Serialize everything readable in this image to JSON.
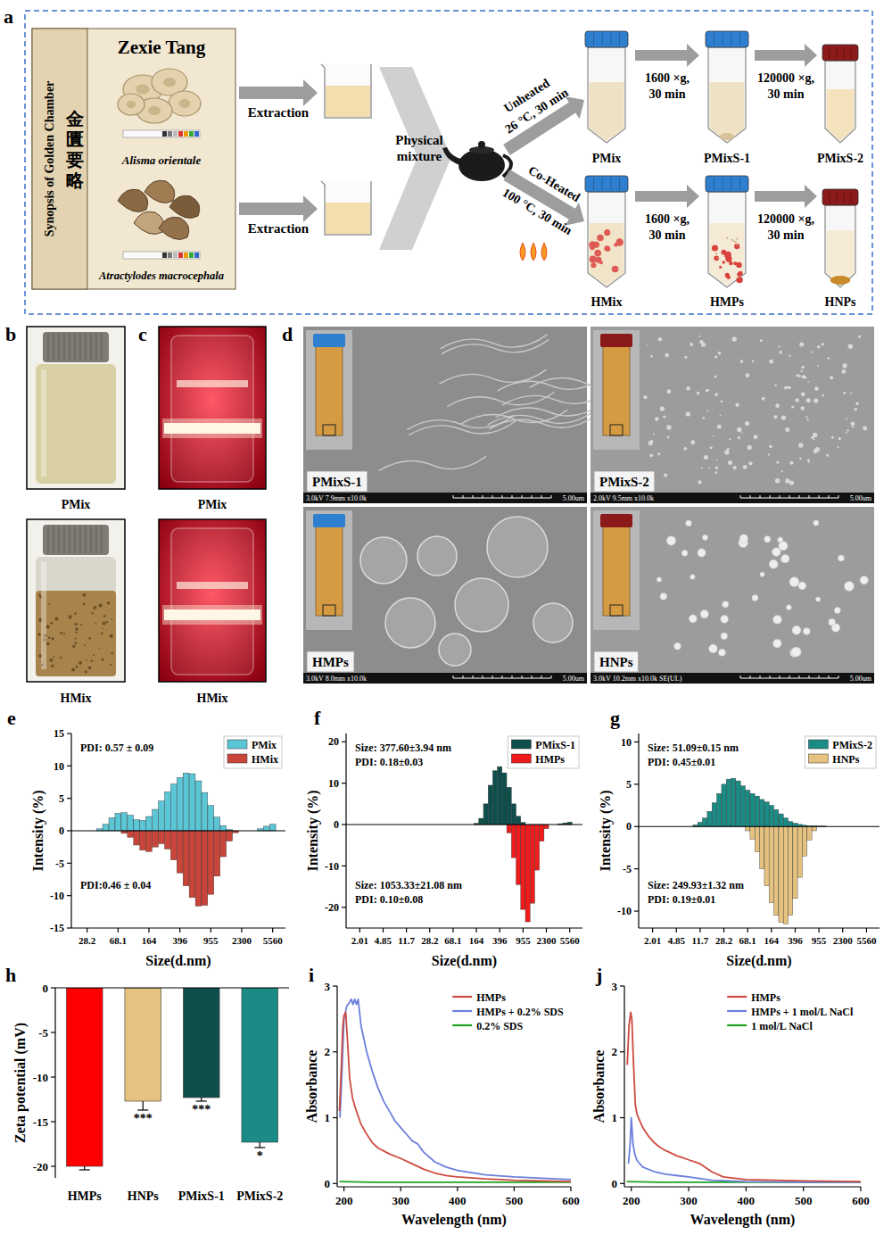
{
  "panel_labels": [
    "a",
    "b",
    "c",
    "d",
    "e",
    "f",
    "g",
    "h",
    "i",
    "j"
  ],
  "diagram": {
    "book": {
      "title_en": "Synopsis of Golden Chamber",
      "title_zh": "金匱要略",
      "formula": "Zexie Tang",
      "herbs": [
        "Alisma orientale",
        "Atractylodes macrocephala"
      ]
    },
    "steps": {
      "extraction": "Extraction",
      "mixing": "Physical mixture",
      "unheated": [
        "Unheated",
        "26 °C, 30 min"
      ],
      "heated": [
        "Co-Heated",
        "100 °C, 30 min"
      ],
      "spin1": [
        "1600 ×g,",
        "30 min"
      ],
      "spin2": [
        "120000 ×g,",
        "30 min"
      ]
    },
    "tubes": {
      "unheated": [
        "PMix",
        "PMixS-1",
        "PMixS-2"
      ],
      "heated": [
        "HMix",
        "HMPs",
        "HNPs"
      ]
    }
  },
  "photos": {
    "b": {
      "labels": [
        "PMix",
        "HMix"
      ]
    },
    "c": {
      "labels": [
        "PMix",
        "HMix"
      ]
    },
    "d": {
      "images": [
        {
          "label": "PMixS-1",
          "info": "3.0kV 7.9mm x10.0k",
          "scale": "5.00um"
        },
        {
          "label": "PMixS-2",
          "info": "2.0kV 9.5mm x10.0k",
          "scale": "5.00um"
        },
        {
          "label": "HMPs",
          "info": "3.0kV 8.0mm x10.0k",
          "scale": "5.00um"
        },
        {
          "label": "HNPs",
          "info": "3.0kV 10.2mm x10.0k SE(UL)",
          "scale": "5.00um"
        }
      ]
    }
  },
  "chart_data": [
    {
      "type": "bar",
      "log": "x",
      "xlim": [
        18,
        8000
      ],
      "xticks": [
        28.2,
        68.1,
        164,
        396,
        955,
        2300,
        5560
      ],
      "ylim": [
        -15,
        15
      ],
      "yticks": [
        15,
        10,
        5,
        0,
        -5,
        -10,
        -15
      ],
      "x_label": "Size(d.nm)",
      "y_label": "Intensity (%)",
      "legend": "upper right",
      "series": [
        {
          "name": "PMix",
          "color": "#5bc6d6",
          "x": [
            40.1,
            47.9,
            57.1,
            68.1,
            81.2,
            96.9,
            115.6,
            137.9,
            164,
            196,
            234,
            279,
            332,
            396,
            472,
            563,
            672,
            801,
            955,
            1139,
            1359,
            1621,
            3904,
            4657,
            5560
          ],
          "values": [
            0.3,
            1.0,
            2.0,
            2.7,
            2.8,
            2.4,
            1.7,
            1.6,
            2.2,
            3.3,
            4.6,
            6.0,
            7.2,
            8.2,
            8.9,
            8.8,
            7.7,
            5.9,
            3.9,
            2.1,
            0.8,
            0.2,
            0.3,
            0.7,
            1.0
          ]
        },
        {
          "name": "HMix",
          "color": "#c9453a",
          "x": [
            81.2,
            96.9,
            115.6,
            137.9,
            164,
            196,
            234,
            279,
            332,
            396,
            472,
            563,
            672,
            801,
            955,
            1139,
            1359,
            1621,
            1933
          ],
          "values": [
            -0.4,
            -1.0,
            -2.2,
            -3.0,
            -3.2,
            -2.5,
            -2.0,
            -2.8,
            -4.5,
            -6.5,
            -8.5,
            -10.3,
            -11.6,
            -11.5,
            -9.8,
            -7.0,
            -4.0,
            -1.6,
            -0.3
          ]
        }
      ],
      "annotations": [
        {
          "series": 0,
          "lines": [
            "PDI: 0.57 ± 0.09"
          ]
        },
        {
          "series": 1,
          "lines": [
            "PDI:0.46 ± 0.04"
          ]
        }
      ]
    },
    {
      "type": "bar",
      "log": "x",
      "xlim": [
        1.2,
        9000
      ],
      "xticks": [
        2.01,
        4.85,
        11.7,
        28.2,
        68.1,
        164,
        396,
        955,
        2300,
        5560
      ],
      "ylim": [
        -25,
        22
      ],
      "yticks": [
        20,
        10,
        0,
        -10,
        -20
      ],
      "x_label": "Size(d.nm)",
      "y_label": "Intensity (%)",
      "legend": "upper right",
      "series": [
        {
          "name": "PMixS-1",
          "color": "#0f4f4b",
          "x": [
            164,
            196,
            234,
            279,
            332,
            396,
            472,
            563,
            672,
            801,
            955,
            3904,
            4657,
            5560
          ],
          "values": [
            0.3,
            1.5,
            5.0,
            9.5,
            13.0,
            14.0,
            12.5,
            9.0,
            5.0,
            2.0,
            0.5,
            0.2,
            0.4,
            0.6
          ]
        },
        {
          "name": "HMPs",
          "color": "#ee1c1c",
          "x": [
            563,
            672,
            801,
            955,
            1139,
            1359,
            1621,
            1933,
            2300
          ],
          "values": [
            -2.0,
            -8.0,
            -14.5,
            -20.5,
            -23.5,
            -19.0,
            -11.0,
            -4.0,
            -1.0
          ]
        }
      ],
      "annotations": [
        {
          "series": 0,
          "lines": [
            "Size: 377.60±3.94 nm",
            "PDI: 0.18±0.03"
          ]
        },
        {
          "series": 1,
          "lines": [
            "Size: 1053.33±21.08 nm",
            "PDI: 0.10±0.08"
          ]
        }
      ]
    },
    {
      "type": "bar",
      "log": "x",
      "xlim": [
        1.2,
        9000
      ],
      "xticks": [
        2.01,
        4.85,
        11.7,
        28.2,
        68.1,
        164,
        396,
        955,
        2300,
        5560
      ],
      "ylim": [
        -12,
        11
      ],
      "yticks": [
        10,
        5,
        0,
        -5,
        -10
      ],
      "x_label": "Size(d.nm)",
      "y_label": "Intensity (%)",
      "legend": "upper right",
      "series": [
        {
          "name": "PMixS-2",
          "color": "#1b8c85",
          "x": [
            9.8,
            11.7,
            13.9,
            16.6,
            19.8,
            23.6,
            28.2,
            33.6,
            40.1,
            47.9,
            57.1,
            68.1,
            81.2,
            96.9,
            115.6,
            137.9,
            164,
            196,
            234,
            279,
            332,
            396,
            472,
            563,
            672,
            801,
            955,
            1139
          ],
          "values": [
            0.2,
            0.5,
            1.0,
            1.8,
            2.8,
            3.9,
            5.0,
            5.6,
            5.7,
            5.4,
            4.8,
            4.3,
            3.9,
            3.6,
            3.2,
            2.9,
            2.5,
            2.0,
            1.5,
            1.0,
            0.6,
            0.4,
            0.25,
            0.15,
            0.1,
            0.1,
            0.05,
            0.05
          ]
        },
        {
          "name": "HNPs",
          "color": "#e6c281",
          "x": [
            68.1,
            81.2,
            96.9,
            115.6,
            137.9,
            164,
            196,
            234,
            279,
            332,
            396,
            472,
            563,
            672,
            801
          ],
          "values": [
            -0.5,
            -1.5,
            -3.0,
            -5.0,
            -7.0,
            -9.0,
            -10.5,
            -11.3,
            -11.5,
            -10.5,
            -8.5,
            -6.0,
            -3.5,
            -1.6,
            -0.5
          ]
        }
      ],
      "annotations": [
        {
          "series": 0,
          "lines": [
            "Size: 51.09±0.15 nm",
            "PDI: 0.45±0.01"
          ]
        },
        {
          "series": 1,
          "lines": [
            "Size: 249.93±1.32 nm",
            "PDI: 0.19±0.01"
          ]
        }
      ]
    },
    {
      "type": "bar",
      "categories": [
        "HMPs",
        "HNPs",
        "PMixS-1",
        "PMixS-2"
      ],
      "values": [
        -20.0,
        -12.7,
        -12.3,
        -17.3
      ],
      "errors": [
        0.4,
        1.0,
        0.4,
        0.6
      ],
      "colors": [
        "#ff0000",
        "#e6c281",
        "#0f4f4b",
        "#1b8c85"
      ],
      "significance": [
        null,
        "***",
        "***",
        "*"
      ],
      "ylim": [
        -21.3,
        0
      ],
      "yticks": [
        0,
        -5,
        -10,
        -15,
        -20
      ],
      "y_label": "Zeta potential (mV)"
    },
    {
      "type": "line",
      "xlim": [
        188,
        600
      ],
      "xticks": [
        200,
        300,
        400,
        500,
        600
      ],
      "ylim": [
        -0.05,
        3
      ],
      "yticks": [
        0,
        1,
        2,
        3
      ],
      "x_label": "Wavelength (nm)",
      "y_label": "Absorbance",
      "legend": "upper right",
      "series": [
        {
          "name": "HMPs",
          "color": "#cd4b3f",
          "x": [
            192,
            195,
            198,
            200,
            203,
            206,
            210,
            215,
            220,
            230,
            240,
            250,
            260,
            280,
            300,
            320,
            340,
            360,
            380,
            400,
            450,
            500,
            550,
            600
          ],
          "values": [
            1.1,
            1.7,
            2.4,
            2.55,
            2.6,
            2.2,
            1.6,
            1.3,
            1.15,
            0.9,
            0.75,
            0.62,
            0.54,
            0.45,
            0.38,
            0.3,
            0.22,
            0.16,
            0.12,
            0.1,
            0.07,
            0.05,
            0.04,
            0.03
          ]
        },
        {
          "name": "HMPs + 0.2% SDS",
          "color": "#6b7fdc",
          "x": [
            193,
            196,
            200,
            205,
            210,
            213,
            216,
            219,
            222,
            225,
            230,
            240,
            250,
            260,
            270,
            280,
            290,
            300,
            310,
            320,
            330,
            340,
            360,
            380,
            400,
            450,
            500,
            550,
            600
          ],
          "values": [
            1.0,
            1.6,
            2.5,
            2.7,
            2.75,
            2.8,
            2.72,
            2.8,
            2.72,
            2.8,
            2.4,
            2.0,
            1.7,
            1.45,
            1.25,
            1.1,
            0.95,
            0.85,
            0.75,
            0.65,
            0.6,
            0.48,
            0.33,
            0.25,
            0.2,
            0.13,
            0.1,
            0.08,
            0.06
          ]
        },
        {
          "name": "0.2% SDS",
          "color": "#1fa31f",
          "x": [
            192,
            250,
            300,
            400,
            500,
            600
          ],
          "values": [
            0.03,
            0.02,
            0.02,
            0.02,
            0.02,
            0.02
          ]
        }
      ]
    },
    {
      "type": "line",
      "xlim": [
        188,
        600
      ],
      "xticks": [
        200,
        300,
        400,
        500,
        600
      ],
      "ylim": [
        -0.05,
        3
      ],
      "yticks": [
        0,
        1,
        2,
        3
      ],
      "x_label": "Wavelength (nm)",
      "y_label": "Absorbance",
      "legend": "upper right",
      "series": [
        {
          "name": "HMPs",
          "color": "#cd4b3f",
          "x": [
            193,
            196,
            199,
            201,
            204,
            207,
            210,
            220,
            230,
            240,
            250,
            260,
            280,
            300,
            320,
            340,
            360,
            400,
            450,
            500,
            600
          ],
          "values": [
            1.8,
            2.4,
            2.6,
            2.5,
            1.8,
            1.2,
            1.05,
            0.85,
            0.72,
            0.62,
            0.55,
            0.5,
            0.42,
            0.36,
            0.3,
            0.18,
            0.1,
            0.06,
            0.05,
            0.04,
            0.03
          ]
        },
        {
          "name": "HMPs + 1 mol/L NaCl",
          "color": "#6b7fdc",
          "x": [
            195,
            198,
            200,
            203,
            206,
            210,
            220,
            240,
            260,
            300,
            340,
            400,
            500,
            600
          ],
          "values": [
            0.3,
            0.6,
            1.0,
            0.6,
            0.45,
            0.35,
            0.25,
            0.18,
            0.14,
            0.1,
            0.05,
            0.03,
            0.02,
            0.02
          ]
        },
        {
          "name": "1 mol/L NaCl",
          "color": "#1fa31f",
          "x": [
            192,
            250,
            300,
            400,
            500,
            600
          ],
          "values": [
            0.03,
            0.02,
            0.02,
            0.02,
            0.02,
            0.02
          ]
        }
      ]
    }
  ]
}
